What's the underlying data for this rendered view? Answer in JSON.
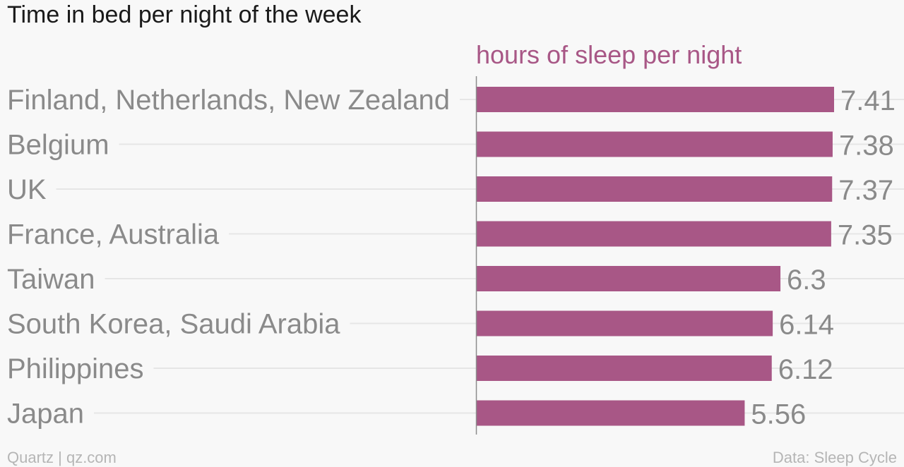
{
  "chart_data": {
    "type": "bar",
    "orientation": "horizontal",
    "title": "Time in bed per night of the week",
    "series": [
      {
        "name": "hours of sleep per night",
        "values": [
          7.41,
          7.38,
          7.37,
          7.35,
          6.3,
          6.14,
          6.12,
          5.56
        ]
      }
    ],
    "categories": [
      "Finland, Netherlands, New Zealand",
      "Belgium",
      "UK",
      "France, Australia",
      "Taiwan",
      "South Korea, Saudi Arabia",
      "Philippines",
      "Japan"
    ],
    "data_labels": [
      "7.41",
      "7.38",
      "7.37",
      "7.35",
      "6.3",
      "6.14",
      "6.12",
      "5.56"
    ],
    "xlim": [
      0,
      7.41
    ],
    "grid": true,
    "legend": "top-center"
  },
  "colors": {
    "bar": "#a85786",
    "series_label": "#a85786",
    "title": "#1a1a1a",
    "category_text": "#8a8a8a",
    "footer_text": "#b5b5b5",
    "gridline": "#e6e6e6",
    "axis": "#8c8c8c",
    "background": "#f8f8f8"
  },
  "footer": {
    "left": "Quartz | qz.com",
    "right": "Data: Sleep Cycle"
  }
}
